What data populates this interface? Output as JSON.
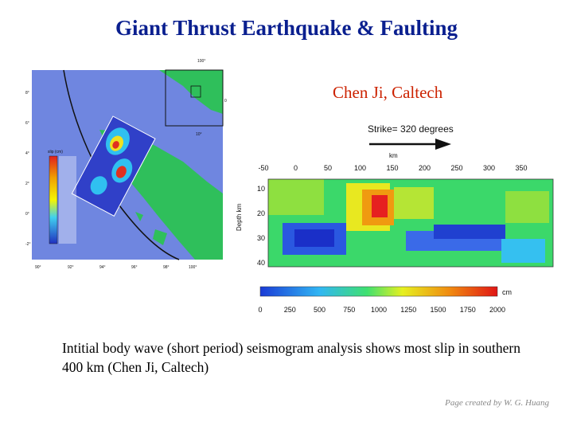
{
  "title": "Giant Thrust Earthquake & Faulting",
  "author": "Chen Ji, Caltech",
  "strike_label": "Strike= 320 degrees",
  "map": {
    "colorbar_label": "slip (cm)",
    "lat_labels": [
      "8°",
      "6°",
      "4°",
      "2°",
      "0°",
      "-2°"
    ],
    "lon_labels": [
      "90°",
      "92°",
      "94°",
      "96°",
      "98°",
      "100°"
    ],
    "inset_lon_labels": [
      "100°"
    ],
    "inset_lat_labels": [
      "10°",
      "0°"
    ]
  },
  "slip_plot": {
    "x_unit": "km",
    "y_label": "Depth km",
    "x_ticks": [
      "-50",
      "0",
      "50",
      "100",
      "150",
      "200",
      "250",
      "300",
      "350"
    ],
    "y_ticks": [
      "10",
      "20",
      "30",
      "40"
    ],
    "colorbar_unit": "cm",
    "colorbar_ticks": [
      "0",
      "250",
      "500",
      "750",
      "1000",
      "1250",
      "1500",
      "1750",
      "2000"
    ]
  },
  "caption": "Intitial body wave (short period) seismogram analysis shows most slip in southern 400 km (Chen Ji, Caltech)",
  "credit": "Page created by W. G. Huang"
}
